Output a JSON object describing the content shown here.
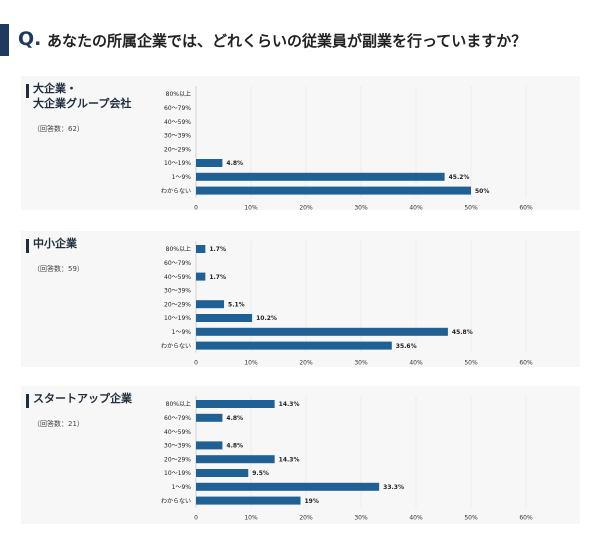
{
  "question": {
    "mark": "Q.",
    "text": "あなたの所属企業では、どれくらいの従業員が副業を行っていますか？"
  },
  "colors": {
    "bar": "#1f6194",
    "accent": "#1f3a5f",
    "panel_bg": "#f7f7f7"
  },
  "chart_data": [
    {
      "type": "bar",
      "orientation": "horizontal",
      "title_lines": [
        "大企業・",
        "大企業グループ会社"
      ],
      "respondents": "（回答数：62）",
      "categories": [
        "80%以上",
        "60〜79%",
        "40〜59%",
        "30〜39%",
        "20〜29%",
        "10〜19%",
        "1〜9%",
        "わからない"
      ],
      "values": [
        0,
        0,
        0,
        0,
        0,
        4.8,
        45.2,
        50
      ],
      "value_labels": [
        "",
        "",
        "",
        "",
        "",
        "4.8%",
        "45.2%",
        "50%"
      ],
      "xticks": [
        "0",
        "10%",
        "20%",
        "30%",
        "40%",
        "50%",
        "60%"
      ],
      "xlim": [
        0,
        60
      ]
    },
    {
      "type": "bar",
      "orientation": "horizontal",
      "title_lines": [
        "中小企業"
      ],
      "respondents": "（回答数：59）",
      "categories": [
        "80%以上",
        "60〜79%",
        "40〜59%",
        "30〜39%",
        "20〜29%",
        "10〜19%",
        "1〜9%",
        "わからない"
      ],
      "values": [
        1.7,
        0,
        1.7,
        0,
        5.1,
        10.2,
        45.8,
        35.6
      ],
      "value_labels": [
        "1.7%",
        "",
        "1.7%",
        "",
        "5.1%",
        "10.2%",
        "45.8%",
        "35.6%"
      ],
      "xticks": [
        "0",
        "10%",
        "20%",
        "30%",
        "40%",
        "50%",
        "60%"
      ],
      "xlim": [
        0,
        60
      ]
    },
    {
      "type": "bar",
      "orientation": "horizontal",
      "title_lines": [
        "スタートアップ企業"
      ],
      "respondents": "（回答数：21）",
      "categories": [
        "80%以上",
        "60〜79%",
        "40〜59%",
        "30〜39%",
        "20〜29%",
        "10〜19%",
        "1〜9%",
        "わからない"
      ],
      "values": [
        14.3,
        4.8,
        0,
        4.8,
        14.3,
        9.5,
        33.3,
        19
      ],
      "value_labels": [
        "14.3%",
        "4.8%",
        "",
        "4.8%",
        "14.3%",
        "9.5%",
        "33.3%",
        "19%"
      ],
      "xticks": [
        "0",
        "10%",
        "20%",
        "30%",
        "40%",
        "50%",
        "60%"
      ],
      "xlim": [
        0,
        60
      ]
    }
  ]
}
